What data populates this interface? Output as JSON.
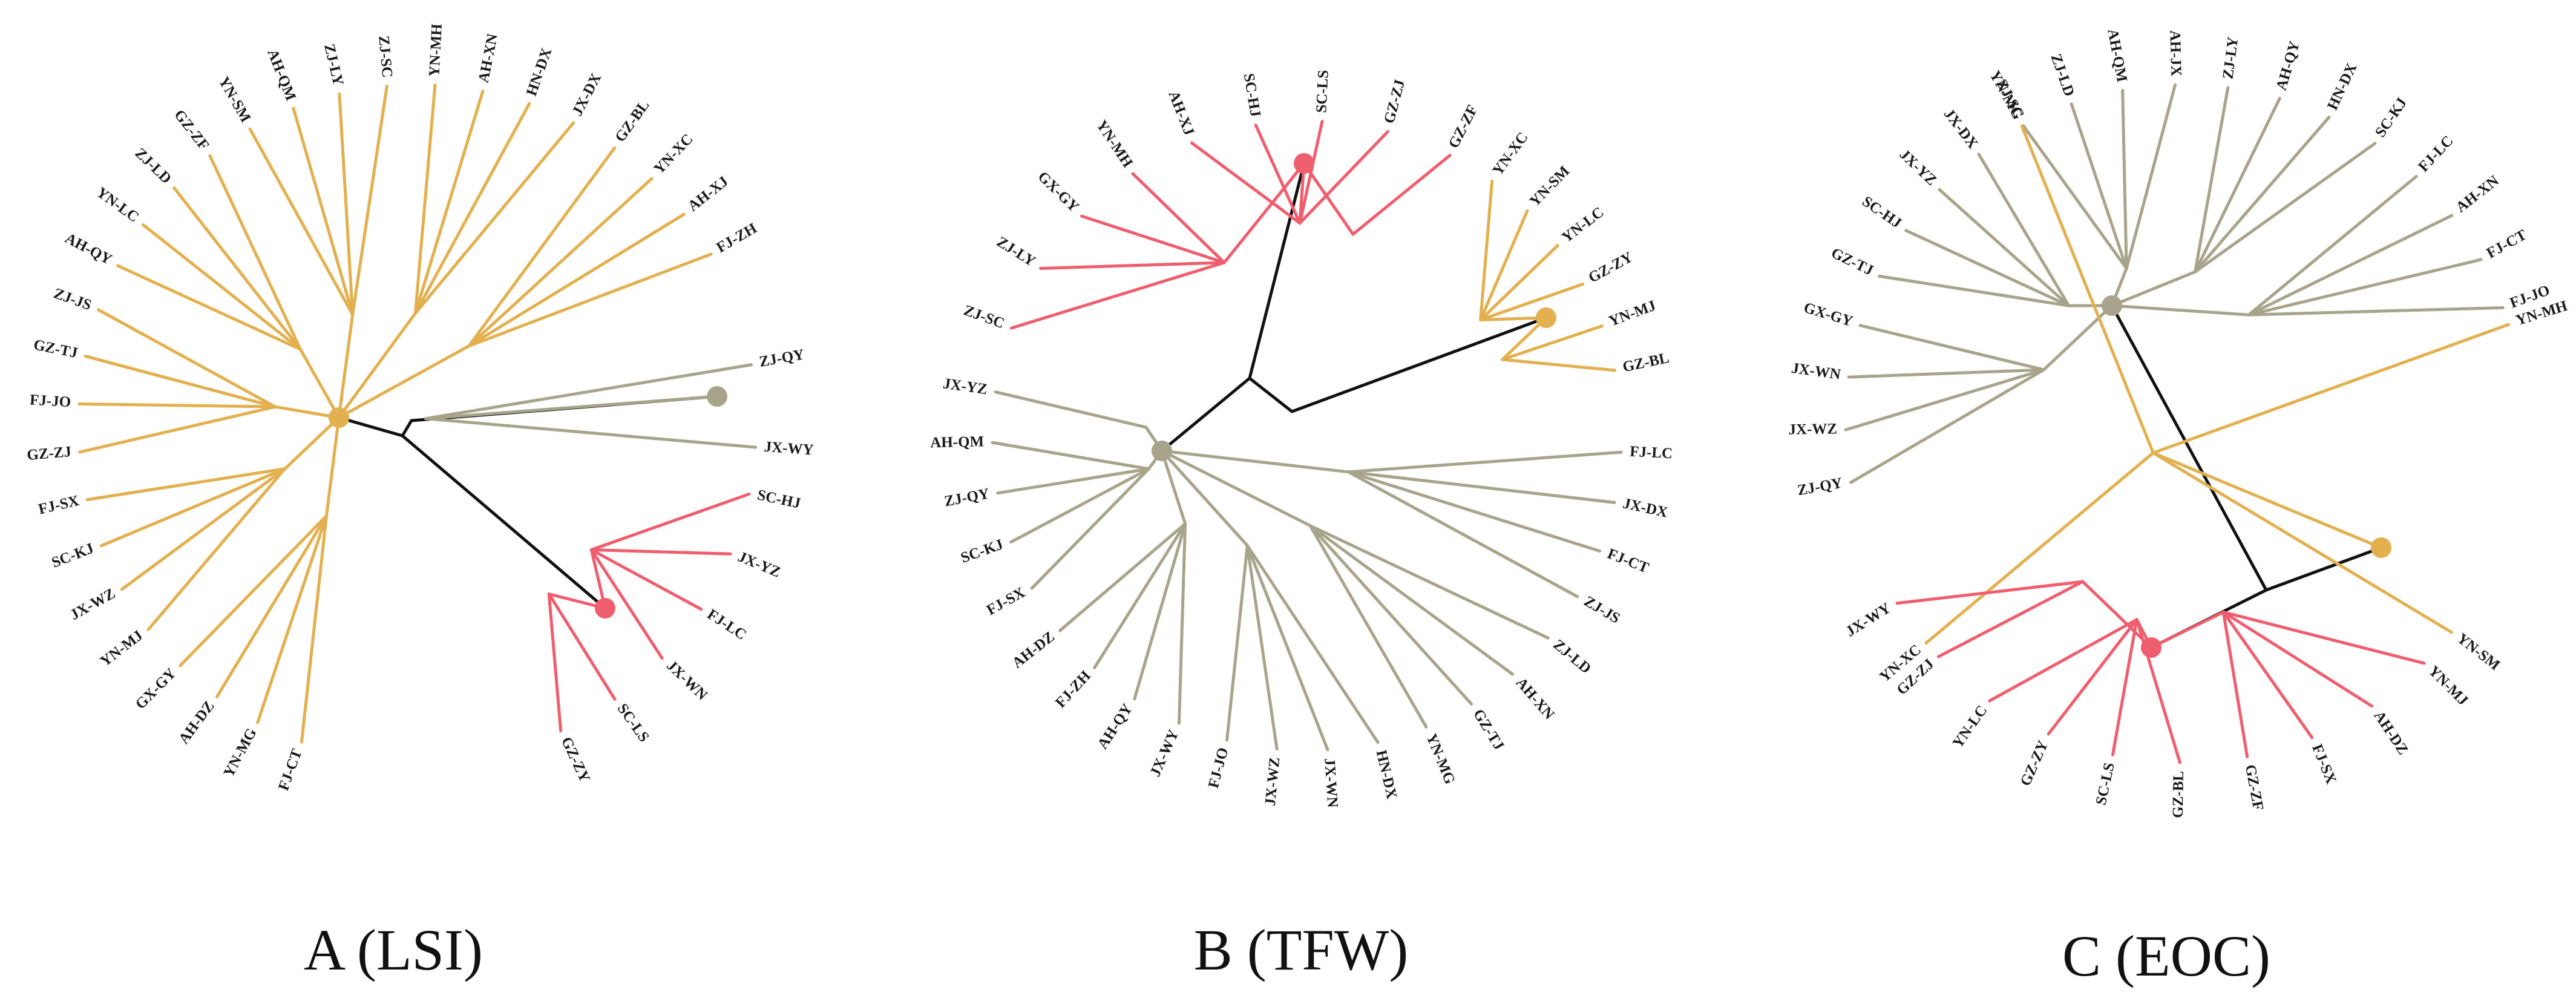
{
  "colors": {
    "root": "#111111",
    "gold": "#E2B04F",
    "red": "#EF5E6E",
    "gray": "#A8A48C",
    "label": "#1a1a1a"
  },
  "panels": [
    {
      "label": "A (LSI)",
      "root_tree": "center-black-lines",
      "clusters": [
        {
          "color": "gold",
          "members": [
            "FJ-CT",
            "YN-MG",
            "AH-DZ",
            "GX-GY",
            "YN-MJ",
            "JX-WZ",
            "SC-KJ",
            "FJ-SX",
            "GZ-ZJ",
            "FJ-JO",
            "GZ-TJ",
            "ZJ-JS",
            "AH-QY",
            "YN-LC",
            "ZJ-LD",
            "GZ-ZF",
            "YN-SM",
            "AH-QM",
            "ZJ-LY",
            "ZJ-SC",
            "YN-MH",
            "AH-XN",
            "HN-DX",
            "JX-DX",
            "GZ-BL",
            "YN-XC",
            "AH-XJ",
            "FJ-ZH"
          ]
        },
        {
          "color": "gray",
          "members": [
            "ZJ-QY",
            "JX-WY"
          ]
        },
        {
          "color": "red",
          "members": [
            "SC-HJ",
            "JX-YZ",
            "FJ-LC",
            "JX-WN",
            "SC-LS",
            "GZ-ZY"
          ]
        }
      ]
    },
    {
      "label": "B (TFW)",
      "root_tree": "center-black-lines",
      "clusters": [
        {
          "color": "red",
          "members": [
            "ZJ-SC",
            "ZJ-LY",
            "GX-GY",
            "YN-MH",
            "AH-XJ",
            "SC-HJ",
            "SC-LS",
            "GZ-ZJ",
            "GZ-ZF"
          ]
        },
        {
          "color": "gold",
          "members": [
            "YN-XC",
            "YN-SM",
            "YN-LC",
            "GZ-ZY",
            "YN-MJ",
            "GZ-BL"
          ]
        },
        {
          "color": "gray",
          "members": [
            "FJ-LC",
            "JX-DX",
            "FJ-CT",
            "ZJ-JS",
            "ZJ-LD",
            "AH-XN",
            "GZ-TJ",
            "YN-MG",
            "HN-DX",
            "JX-WN",
            "JX-WZ",
            "FJ-JO",
            "JX-WY",
            "AH-QY",
            "FJ-ZH",
            "AH-DZ",
            "FJ-SX",
            "SC-KJ",
            "ZJ-QY",
            "AH-QM",
            "JX-YZ"
          ]
        }
      ]
    },
    {
      "label": "C (EOC)",
      "root_tree": "center-black-lines",
      "clusters": [
        {
          "color": "gray",
          "members": [
            "ZJ-QY",
            "JX-WZ",
            "JX-WN",
            "GX-GY",
            "GZ-TJ",
            "SC-HJ",
            "JX-YZ",
            "JX-DX",
            "ZJ-SC",
            "ZJ-LD",
            "AH-QM",
            "AH-JX",
            "ZJ-LY",
            "AH-QY",
            "HN-DX",
            "SC-KJ",
            "FJ-LC",
            "AH-XN",
            "FJ-CT",
            "FJ-JO"
          ]
        },
        {
          "color": "gold",
          "members": [
            "YN-MH",
            "YN-MG",
            "YN-XC",
            "YN-SM"
          ]
        },
        {
          "color": "red",
          "members": [
            "YN-MJ",
            "AH-DZ",
            "FJ-SX",
            "GZ-ZF",
            "GZ-BL",
            "SC-LS",
            "GZ-ZY",
            "YN-LC",
            "GZ-ZJ",
            "JX-WY"
          ]
        }
      ]
    }
  ]
}
